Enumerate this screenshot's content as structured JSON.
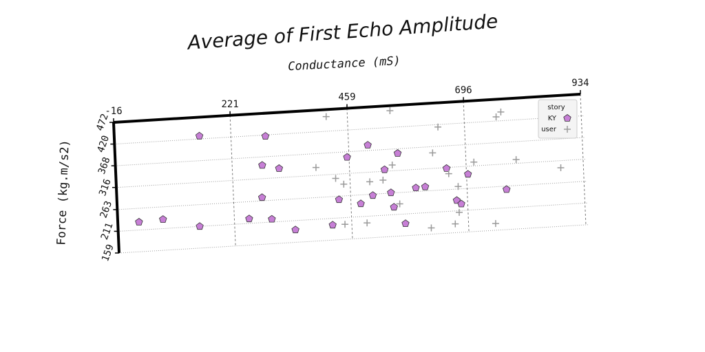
{
  "chart_data": {
    "type": "scatter",
    "title": "Average of First Echo Amplitude",
    "x_label": "Conductance (mS)",
    "y_label": "Force (kg.m/s2)",
    "legend_title": "story",
    "legend": "upper right",
    "grid": true,
    "xlim": [
      -16,
      934
    ],
    "xticks": [
      -16,
      221,
      459,
      696,
      934
    ],
    "ylim": [
      159,
      472
    ],
    "yticks": [
      159,
      211,
      263,
      316,
      368,
      420,
      472
    ],
    "series": [
      {
        "name": "KY",
        "color": "#c77fd6",
        "marker": "pentagon",
        "x": [
          157,
          291,
          498,
          455,
          558,
          282,
          316,
          530,
          656,
          699,
          592,
          611,
          541,
          504,
          435,
          479,
          279,
          674,
          683,
          776,
          546,
          27,
          76,
          150,
          251,
          297,
          344,
          420,
          568
        ],
        "values": [
          427,
          417,
          381,
          355,
          357,
          348,
          338,
          320,
          314,
          297,
          272,
          273,
          264,
          260,
          255,
          242,
          271,
          236,
          227,
          255,
          229,
          230,
          233,
          211,
          222,
          218,
          189,
          195,
          188
        ]
      },
      {
        "name": "user",
        "color": "#999999",
        "marker": "plus",
        "x": [
          416,
          546,
          642,
          761,
          771,
          629,
          798,
          712,
          888,
          546,
          391,
          430,
          446,
          499,
          526,
          660,
          678,
          558,
          678,
          445,
          490,
          620,
          669,
          751
        ],
        "values": [
          455,
          460,
          414,
          430,
          441,
          353,
          325,
          325,
          299,
          330,
          335,
          306,
          291,
          293,
          295,
          301,
          269,
          236,
          207,
          195,
          195,
          174,
          180,
          175
        ]
      }
    ]
  }
}
